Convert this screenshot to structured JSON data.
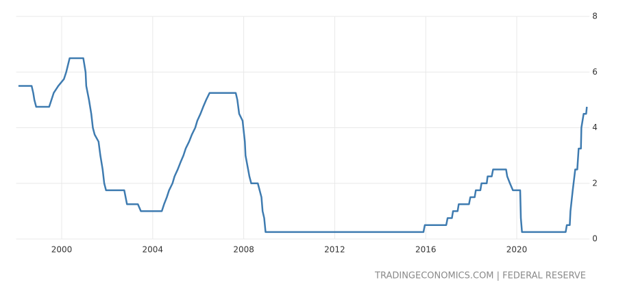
{
  "chart_data": {
    "type": "line",
    "source": "TRADINGECONOMICS.COM | FEDERAL RESERVE",
    "x": [
      1998.1,
      1998.68,
      1998.75,
      1998.8,
      1998.88,
      1999.45,
      1999.55,
      1999.65,
      1999.85,
      2000.1,
      2000.2,
      2000.35,
      2000.95,
      2001.05,
      2001.08,
      2001.2,
      2001.3,
      2001.37,
      2001.45,
      2001.62,
      2001.7,
      2001.8,
      2001.87,
      2001.95,
      2002.75,
      2002.87,
      2003.35,
      2003.48,
      2004.4,
      2004.5,
      2004.62,
      2004.72,
      2004.87,
      2004.96,
      2005.1,
      2005.22,
      2005.35,
      2005.45,
      2005.6,
      2005.72,
      2005.87,
      2005.96,
      2006.1,
      2006.22,
      2006.35,
      2006.5,
      2007.65,
      2007.72,
      2007.8,
      2007.95,
      2008.05,
      2008.08,
      2008.25,
      2008.33,
      2008.62,
      2008.78,
      2008.83,
      2008.9,
      2008.96,
      2015.9,
      2015.96,
      2016.9,
      2016.96,
      2017.15,
      2017.2,
      2017.4,
      2017.45,
      2017.9,
      2017.96,
      2018.15,
      2018.2,
      2018.4,
      2018.45,
      2018.68,
      2018.72,
      2018.9,
      2018.96,
      2019.53,
      2019.58,
      2019.7,
      2019.83,
      2020.15,
      2020.18,
      2020.23,
      2022.15,
      2022.2,
      2022.33,
      2022.36,
      2022.46,
      2022.57,
      2022.66,
      2022.72,
      2022.82,
      2022.84,
      2022.94,
      2023.05,
      2023.08
    ],
    "series": [
      {
        "color": "#3e7bb0",
        "values": [
          5.5,
          5.5,
          5.25,
          5.0,
          4.75,
          4.75,
          5.0,
          5.25,
          5.5,
          5.75,
          6.0,
          6.5,
          6.5,
          6.0,
          5.5,
          5.0,
          4.5,
          4.0,
          3.75,
          3.5,
          3.0,
          2.5,
          2.0,
          1.75,
          1.75,
          1.25,
          1.25,
          1.0,
          1.0,
          1.25,
          1.5,
          1.75,
          2.0,
          2.25,
          2.5,
          2.75,
          3.0,
          3.25,
          3.5,
          3.75,
          4.0,
          4.25,
          4.5,
          4.75,
          5.0,
          5.25,
          5.25,
          5.0,
          4.5,
          4.25,
          3.5,
          3.0,
          2.25,
          2.0,
          2.0,
          1.5,
          1.0,
          0.75,
          0.25,
          0.25,
          0.5,
          0.5,
          0.75,
          0.75,
          1.0,
          1.0,
          1.25,
          1.25,
          1.5,
          1.5,
          1.75,
          1.75,
          2.0,
          2.0,
          2.25,
          2.25,
          2.5,
          2.5,
          2.25,
          2.0,
          1.75,
          1.75,
          0.75,
          0.25,
          0.25,
          0.5,
          0.5,
          1.0,
          1.75,
          2.5,
          2.5,
          3.25,
          3.25,
          4.0,
          4.5,
          4.5,
          4.75
        ]
      }
    ],
    "xlim": [
      1998,
      2023.2
    ],
    "xticks": [
      2000,
      2004,
      2008,
      2012,
      2016,
      2020
    ],
    "ylim": [
      0,
      8
    ],
    "yticks": [
      0,
      2,
      4,
      6,
      8
    ],
    "grid": true
  }
}
